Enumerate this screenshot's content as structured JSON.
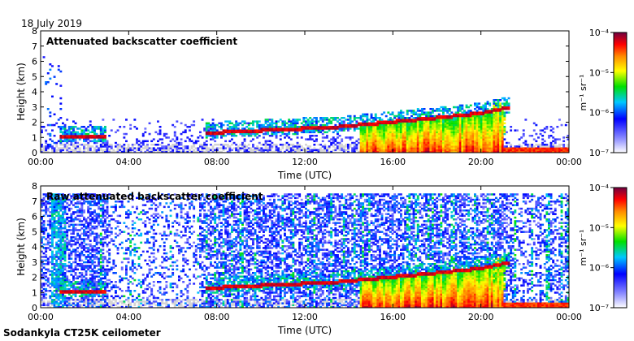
{
  "header": {
    "date": "18 July 2019"
  },
  "footer": {
    "instrument": "Sodankyla CT25K ceilometer"
  },
  "chart_data": [
    {
      "type": "heatmap",
      "title": "Attenuated backscatter coefficient",
      "xlabel": "Time (UTC)",
      "ylabel": "Height (km)",
      "xticks": [
        "00:00",
        "04:00",
        "08:00",
        "12:00",
        "16:00",
        "20:00",
        "00:00"
      ],
      "xlim": [
        0,
        24
      ],
      "yticks": [
        "0",
        "1",
        "2",
        "3",
        "4",
        "5",
        "6",
        "7",
        "8"
      ],
      "ylim": [
        0,
        8
      ],
      "colorbar": {
        "label": "m⁻¹ sr⁻¹",
        "ticks": [
          "10⁻⁴",
          "10⁻⁵",
          "10⁻⁶",
          "10⁻⁷"
        ],
        "range": [
          -7,
          -4
        ],
        "scale": "log"
      },
      "features": {
        "cloud_layer": [
          [
            0.9,
            1.1
          ],
          [
            3.0,
            1.1
          ],
          [
            7.5,
            1.3
          ],
          [
            10.5,
            1.5
          ],
          [
            13.5,
            1.7
          ],
          [
            15.0,
            1.9
          ],
          [
            18.0,
            2.3
          ],
          [
            20.0,
            2.6
          ],
          [
            21.0,
            2.9
          ]
        ],
        "rain_period": [
          14.5,
          21.0
        ]
      }
    },
    {
      "type": "heatmap",
      "title": "Raw attenuated backscatter coefficient",
      "xlabel": "Time (UTC)",
      "ylabel": "Height (km)",
      "xticks": [
        "00:00",
        "04:00",
        "08:00",
        "12:00",
        "16:00",
        "20:00",
        "00:00"
      ],
      "xlim": [
        0,
        24
      ],
      "yticks": [
        "0",
        "1",
        "2",
        "3",
        "4",
        "5",
        "6",
        "7",
        "8"
      ],
      "ylim": [
        0,
        8
      ],
      "colorbar": {
        "label": "m⁻¹ sr⁻¹",
        "ticks": [
          "10⁻⁴",
          "10⁻⁵",
          "10⁻⁶",
          "10⁻⁷"
        ],
        "range": [
          -7,
          -4
        ],
        "scale": "log"
      },
      "features": {
        "cloud_layer": [
          [
            0.9,
            1.1
          ],
          [
            3.0,
            1.1
          ],
          [
            7.5,
            1.3
          ],
          [
            10.5,
            1.5
          ],
          [
            13.5,
            1.7
          ],
          [
            15.0,
            1.9
          ],
          [
            18.0,
            2.3
          ],
          [
            20.0,
            2.6
          ],
          [
            21.0,
            2.9
          ]
        ],
        "rain_period": [
          14.5,
          21.0
        ]
      }
    }
  ]
}
